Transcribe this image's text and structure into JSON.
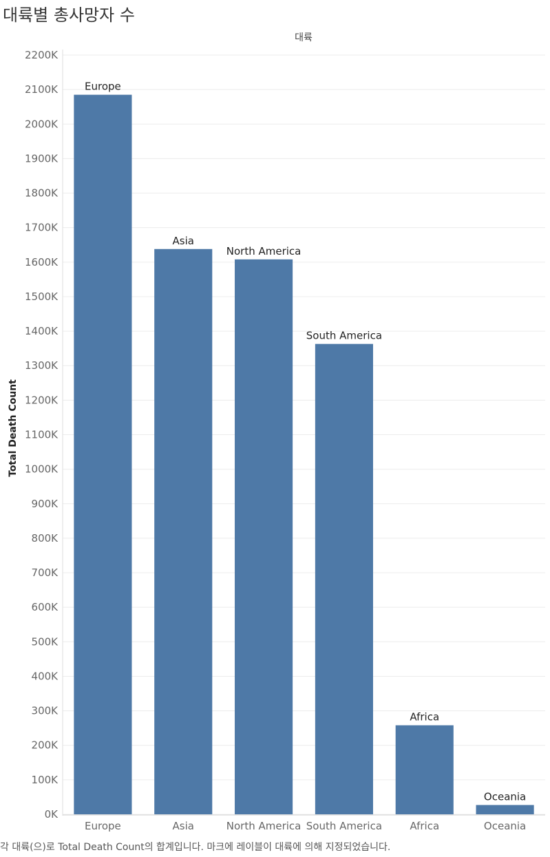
{
  "title": "대륙별 총사망자 수",
  "caption": "각 대륙(으)로 Total Death Count의 합계입니다. 마크에 레이블이 대륙에 의해 지정되었습니다.",
  "colors": {
    "bar": "#4e79a7",
    "grid": "#ececec",
    "axis_text": "#666666",
    "label_text": "#222222"
  },
  "chart_data": {
    "type": "bar",
    "categories": [
      "Europe",
      "Asia",
      "North America",
      "South America",
      "Africa",
      "Oceania"
    ],
    "values": [
      2085000,
      1638000,
      1608000,
      1363000,
      258000,
      27000
    ],
    "title": "대륙별 총사망자 수",
    "column_header": "대륙",
    "xlabel": "",
    "ylabel": "Total Death Count",
    "ylim": [
      0,
      2200000
    ],
    "yticks": [
      0,
      100000,
      200000,
      300000,
      400000,
      500000,
      600000,
      700000,
      800000,
      900000,
      1000000,
      1100000,
      1200000,
      1300000,
      1400000,
      1500000,
      1600000,
      1700000,
      1800000,
      1900000,
      2000000,
      2100000,
      2200000
    ],
    "ytick_labels": [
      "0K",
      "100K",
      "200K",
      "300K",
      "400K",
      "500K",
      "600K",
      "700K",
      "800K",
      "900K",
      "1000K",
      "1100K",
      "1200K",
      "1300K",
      "1400K",
      "1500K",
      "1600K",
      "1700K",
      "1800K",
      "1900K",
      "2000K",
      "2100K",
      "2200K"
    ],
    "data_labels": [
      "Europe",
      "Asia",
      "North America",
      "South America",
      "Africa",
      "Oceania"
    ],
    "grid": true,
    "legend": "none"
  }
}
